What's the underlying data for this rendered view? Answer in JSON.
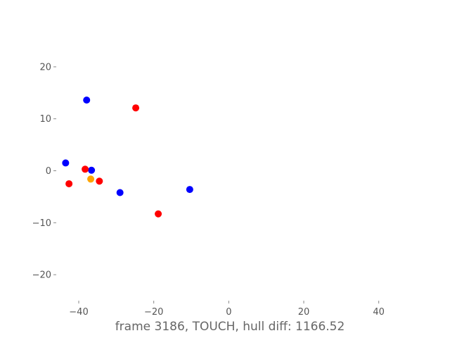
{
  "chart_data": {
    "type": "scatter",
    "title": "",
    "xlabel": "frame 3186, TOUCH, hull diff: 1166.52",
    "ylabel": "",
    "xlim": [
      -46,
      47
    ],
    "ylim": [
      -25,
      25
    ],
    "xticks": [
      -40,
      -20,
      0,
      20,
      40
    ],
    "yticks": [
      -20,
      -10,
      0,
      10,
      20
    ],
    "xtick_labels": [
      "−40",
      "−20",
      "0",
      "20",
      "40"
    ],
    "ytick_labels": [
      "−20",
      "−10",
      "0",
      "10",
      "20"
    ],
    "grid": false,
    "series": [
      {
        "color": "#0000ff",
        "points": [
          {
            "x": -37.9,
            "y": 13.6
          },
          {
            "x": -43.5,
            "y": 1.5
          },
          {
            "x": -36.6,
            "y": 0.1
          },
          {
            "x": -29.0,
            "y": -4.2
          },
          {
            "x": -10.4,
            "y": -3.6
          }
        ]
      },
      {
        "color": "#ff0000",
        "points": [
          {
            "x": -24.8,
            "y": 12.1
          },
          {
            "x": -38.3,
            "y": 0.3
          },
          {
            "x": -42.6,
            "y": -2.5
          },
          {
            "x": -34.5,
            "y": -2.0
          },
          {
            "x": -18.8,
            "y": -8.3
          }
        ]
      },
      {
        "color": "#ffa500",
        "points": [
          {
            "x": -36.8,
            "y": -1.6
          }
        ]
      }
    ]
  }
}
